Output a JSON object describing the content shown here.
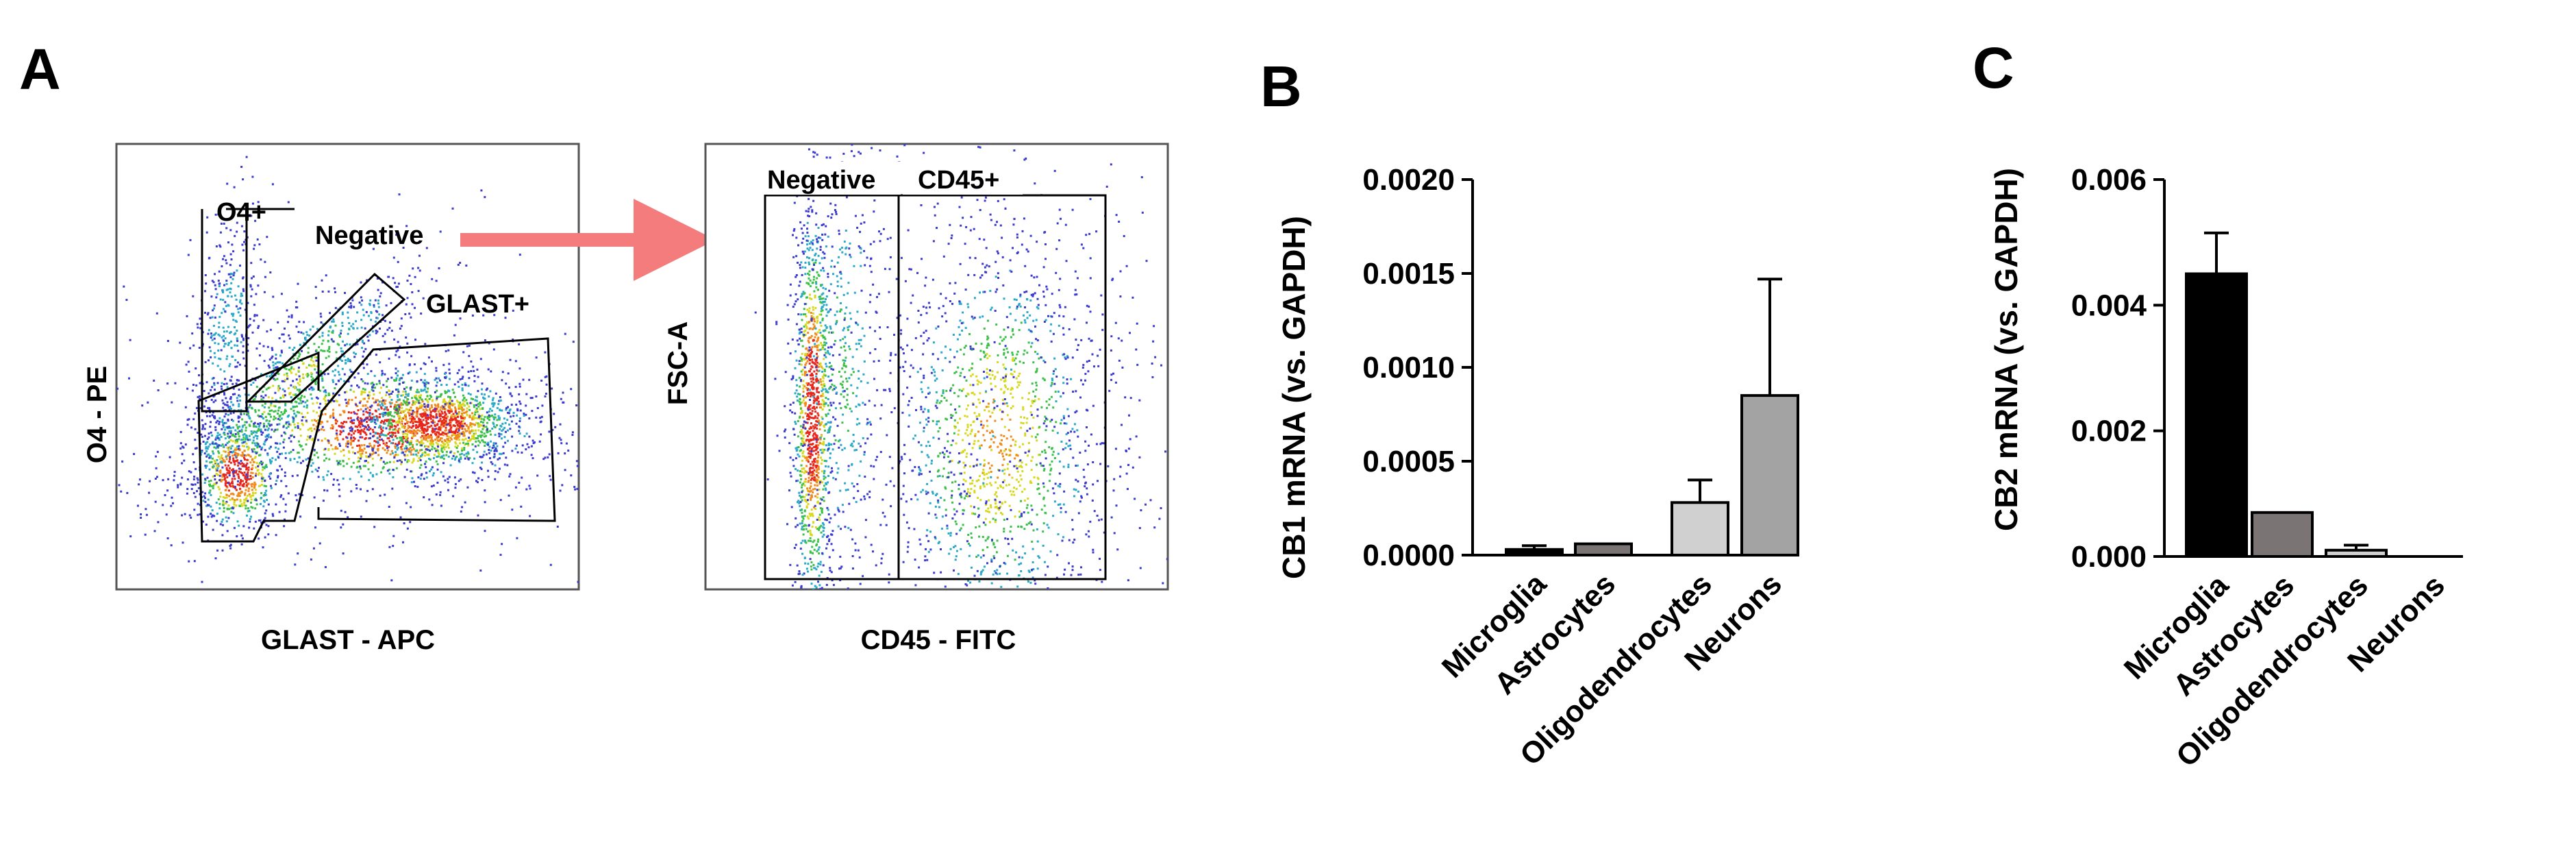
{
  "panels": {
    "a": "A",
    "b": "B",
    "c": "C"
  },
  "flow_a": {
    "xlabel": "GLAST - APC",
    "ylabel": "O4 - PE",
    "gates": [
      "O4+",
      "Negative",
      "GLAST+"
    ]
  },
  "flow_b": {
    "xlabel": "CD45 - FITC",
    "ylabel": "FSC-A",
    "gates": [
      "Negative",
      "CD45+"
    ]
  },
  "colors": {
    "arrow": "#f47c7c",
    "bar_black": "#000000",
    "bar_dark_gray": "#7a7474",
    "bar_light_gray": "#d0d0d0",
    "bar_mid_gray": "#a3a3a3",
    "density_low": "#3b3bd0",
    "density_high": "#e8261c"
  },
  "chart_data": [
    {
      "type": "bar",
      "title": "",
      "xlabel": "",
      "ylabel": "CB1 mRNA (vs. GAPDH)",
      "categories": [
        "Microglia",
        "Astrocytes",
        "Oligodendrocytes",
        "Neurons"
      ],
      "values": [
        3e-05,
        6e-05,
        0.00028,
        0.00085
      ],
      "errors": [
        2e-05,
        0.0,
        0.00012,
        0.00062
      ],
      "ylim": [
        0,
        0.002
      ],
      "yticks": [
        "0.0000",
        "0.0005",
        "0.0010",
        "0.0015",
        "0.0020"
      ],
      "bar_colors": [
        "#000000",
        "#7a7474",
        "#d0d0d0",
        "#a3a3a3"
      ]
    },
    {
      "type": "bar",
      "title": "",
      "xlabel": "",
      "ylabel": "CB2 mRNA (vs. GAPDH)",
      "categories": [
        "Microglia",
        "Astrocytes",
        "Oligodendrocytes",
        "Neurons"
      ],
      "values": [
        0.0045,
        0.0007,
        0.0001,
        0.0
      ],
      "errors": [
        0.00065,
        0.0,
        8e-05,
        0.0
      ],
      "ylim": [
        0,
        0.006
      ],
      "yticks": [
        "0.000",
        "0.002",
        "0.004",
        "0.006"
      ],
      "bar_colors": [
        "#000000",
        "#7a7474",
        "#d0d0d0",
        "#a3a3a3"
      ]
    }
  ]
}
